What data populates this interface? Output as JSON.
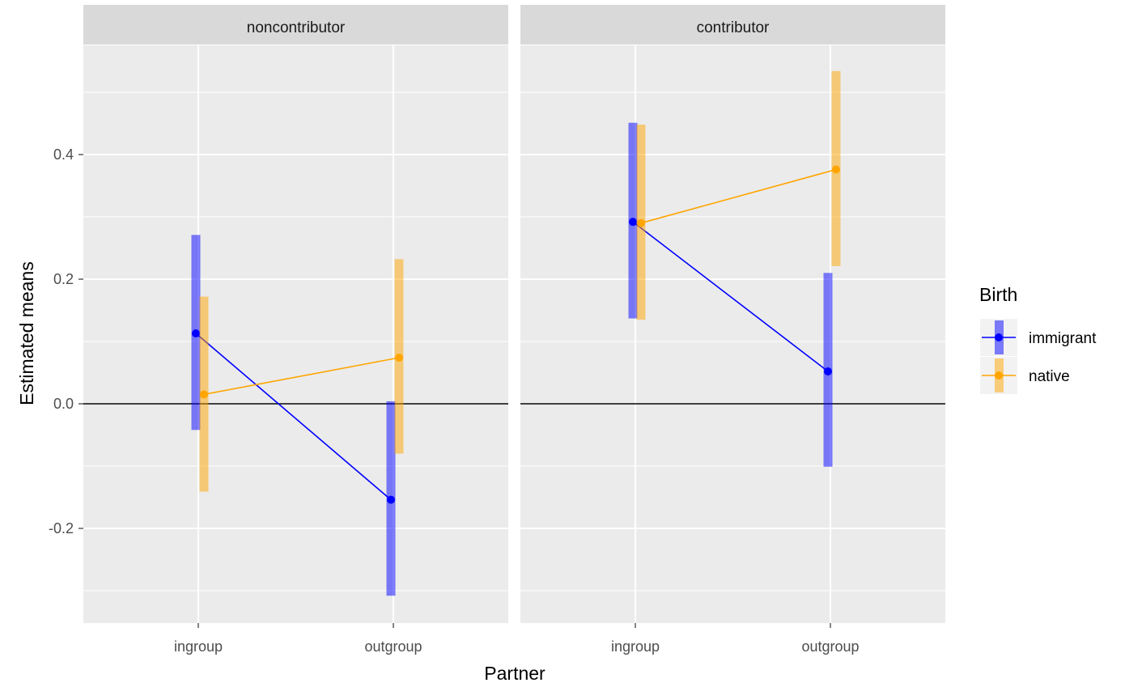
{
  "chart_data": {
    "type": "line",
    "xlabel": "Partner",
    "ylabel": "Estimated means",
    "x_categories": [
      "ingroup",
      "outgroup"
    ],
    "y_ticks": [
      {
        "value": -0.2,
        "label": "-0.2"
      },
      {
        "value": 0.0,
        "label": "0.0"
      },
      {
        "value": 0.2,
        "label": "0.2"
      },
      {
        "value": 0.4,
        "label": "0.4"
      }
    ],
    "ylim": [
      -0.35,
      0.57
    ],
    "grid": true,
    "reference_line_y": 0,
    "legend": {
      "title": "Birth",
      "position": "right",
      "items": [
        {
          "label": "immigrant",
          "color": "#0000ff"
        },
        {
          "label": "native",
          "color": "#ffa500"
        }
      ]
    },
    "panels": [
      {
        "title": "noncontributor",
        "series": [
          {
            "name": "immigrant",
            "color": "#0000ff",
            "values": [
              0.113,
              -0.154
            ],
            "lower": [
              -0.042,
              -0.308
            ],
            "upper": [
              0.271,
              0.004
            ]
          },
          {
            "name": "native",
            "color": "#ffa500",
            "values": [
              0.015,
              0.074
            ],
            "lower": [
              -0.141,
              -0.08
            ],
            "upper": [
              0.172,
              0.232
            ]
          }
        ]
      },
      {
        "title": "contributor",
        "series": [
          {
            "name": "immigrant",
            "color": "#0000ff",
            "values": [
              0.292,
              0.052
            ],
            "lower": [
              0.137,
              -0.101
            ],
            "upper": [
              0.451,
              0.21
            ]
          },
          {
            "name": "native",
            "color": "#ffa500",
            "values": [
              0.29,
              0.376
            ],
            "lower": [
              0.135,
              0.221
            ],
            "upper": [
              0.448,
              0.534
            ]
          }
        ]
      }
    ]
  }
}
